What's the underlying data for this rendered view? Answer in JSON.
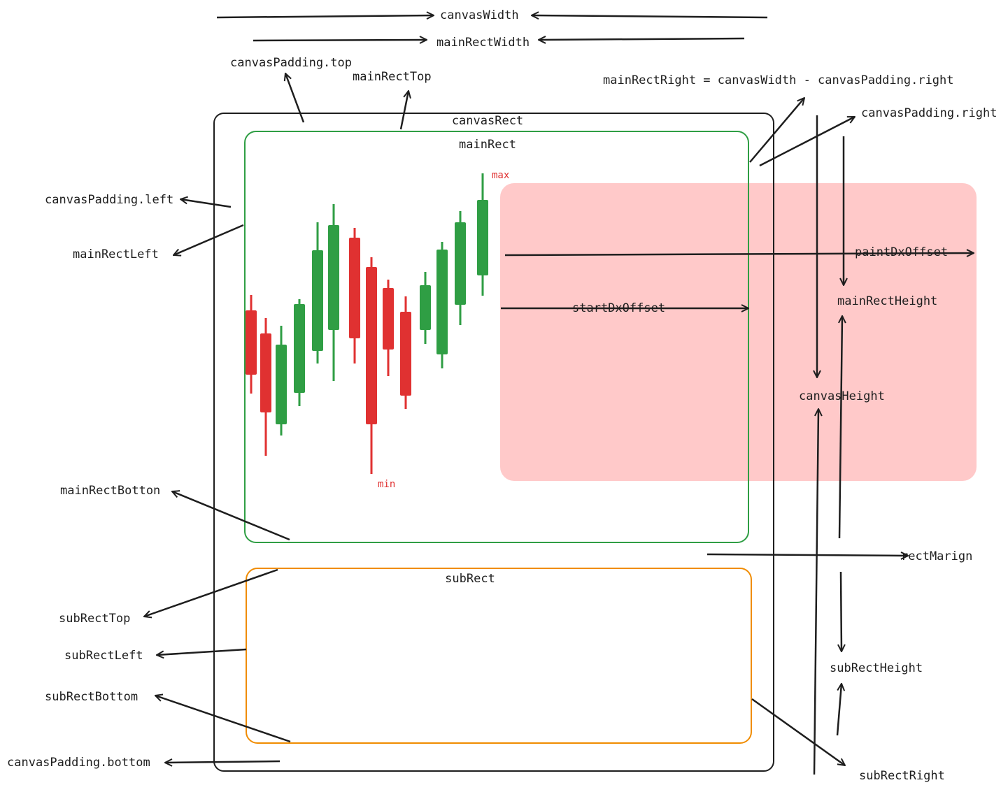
{
  "rects": {
    "canvas": "canvasRect",
    "main": "mainRect",
    "sub": "subRect"
  },
  "extremes": {
    "max": "max",
    "min": "min"
  },
  "labels": [
    "canvasWidth",
    "mainRectWidth",
    "canvasPadding.top",
    "mainRectTop",
    "mainRectRight = canvasWidth - canvasPadding.right",
    "canvasPadding.right",
    "canvasPadding.left",
    "mainRectLeft",
    "paintDxOffset",
    "startDxOffset",
    "mainRectHeight",
    "canvasHeight",
    "mainRectBotton",
    "rectMarign",
    "subRectTop",
    "subRectLeft",
    "subRectHeight",
    "subRectBottom",
    "canvasPadding.bottom",
    "subRectRight"
  ]
}
